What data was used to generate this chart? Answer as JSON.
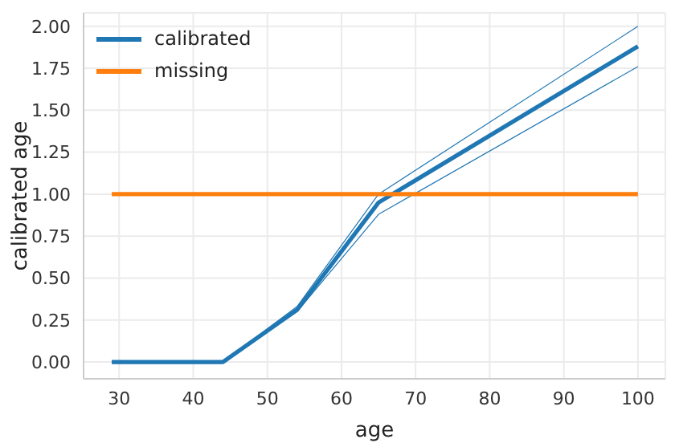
{
  "chart_data": {
    "type": "line",
    "xlabel": "age",
    "ylabel": "calibrated age",
    "x": [
      29,
      44,
      54,
      65,
      100
    ],
    "series": [
      {
        "color": "#1f77b4",
        "values": [
          0,
          0,
          0.3,
          0.88,
          1.76
        ]
      },
      {
        "color": "#1f77b4",
        "values": [
          0,
          0,
          0.33,
          1.0,
          2.0
        ]
      },
      {
        "name": "calibrated",
        "color": "#1f77b4",
        "values": [
          0,
          0,
          0.31,
          0.95,
          1.88
        ]
      },
      {
        "name": "missing",
        "color": "#ff7f0e",
        "values": [
          1,
          1,
          1,
          1,
          1
        ]
      }
    ],
    "xlim": [
      25.2,
      103.7
    ],
    "ylim": [
      -0.1,
      2.08
    ],
    "xticks": [
      30,
      40,
      50,
      60,
      70,
      80,
      90,
      100
    ],
    "yticks": [
      {
        "value": 0,
        "label": "0.00"
      },
      {
        "value": 0.25,
        "label": "0.25"
      },
      {
        "value": 0.5,
        "label": "0.50"
      },
      {
        "value": 0.75,
        "label": "0.75"
      },
      {
        "value": 1,
        "label": "1.00"
      },
      {
        "value": 1.25,
        "label": "1.25"
      },
      {
        "value": 1.5,
        "label": "1.50"
      },
      {
        "value": 1.75,
        "label": "1.75"
      },
      {
        "value": 2,
        "label": "2.00"
      }
    ],
    "grid": true,
    "legend": "top left",
    "marker": "none",
    "line_style": "solid"
  }
}
